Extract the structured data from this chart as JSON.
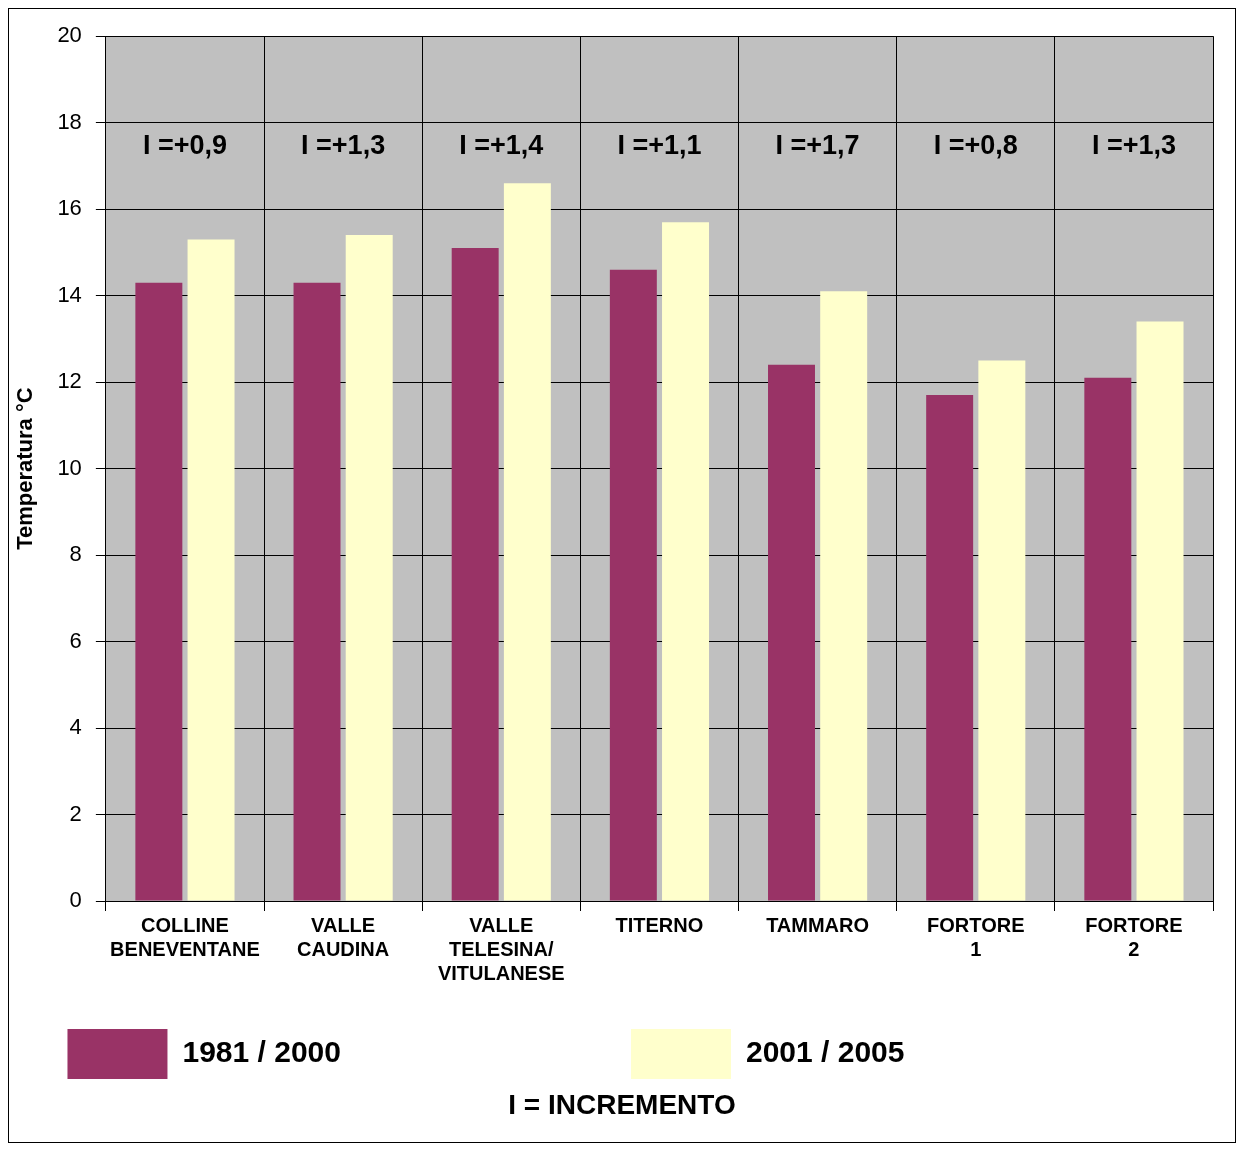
{
  "chart_data": {
    "type": "bar",
    "ylabel": "Temperatura °C",
    "categories": [
      "COLLINE BENEVENTANE",
      "VALLE CAUDINA",
      "VALLE TELESINA/ VITULANESE",
      "TITERNO",
      "TAMMARO",
      "FORTORE 1",
      "FORTORE 2"
    ],
    "series": [
      {
        "name": "1981 / 2000",
        "color": "#993366",
        "values": [
          14.3,
          14.3,
          15.1,
          14.6,
          12.4,
          11.7,
          12.1
        ]
      },
      {
        "name": "2001 / 2005",
        "color": "#ffffcc",
        "values": [
          15.3,
          15.4,
          16.6,
          15.7,
          14.1,
          12.5,
          13.4
        ]
      }
    ],
    "ylim": [
      0,
      20
    ],
    "yticks": [
      0,
      2,
      4,
      6,
      8,
      10,
      12,
      14,
      16,
      18,
      20
    ],
    "grid": true,
    "legend": "bottom",
    "annotations": [
      "I =+0,9",
      "I =+1,3",
      "I =+1,4",
      "I =+1,1",
      "I =+1,7",
      "I =+0,8",
      "I =+1,3",
      "I = INCREMENTO"
    ]
  }
}
